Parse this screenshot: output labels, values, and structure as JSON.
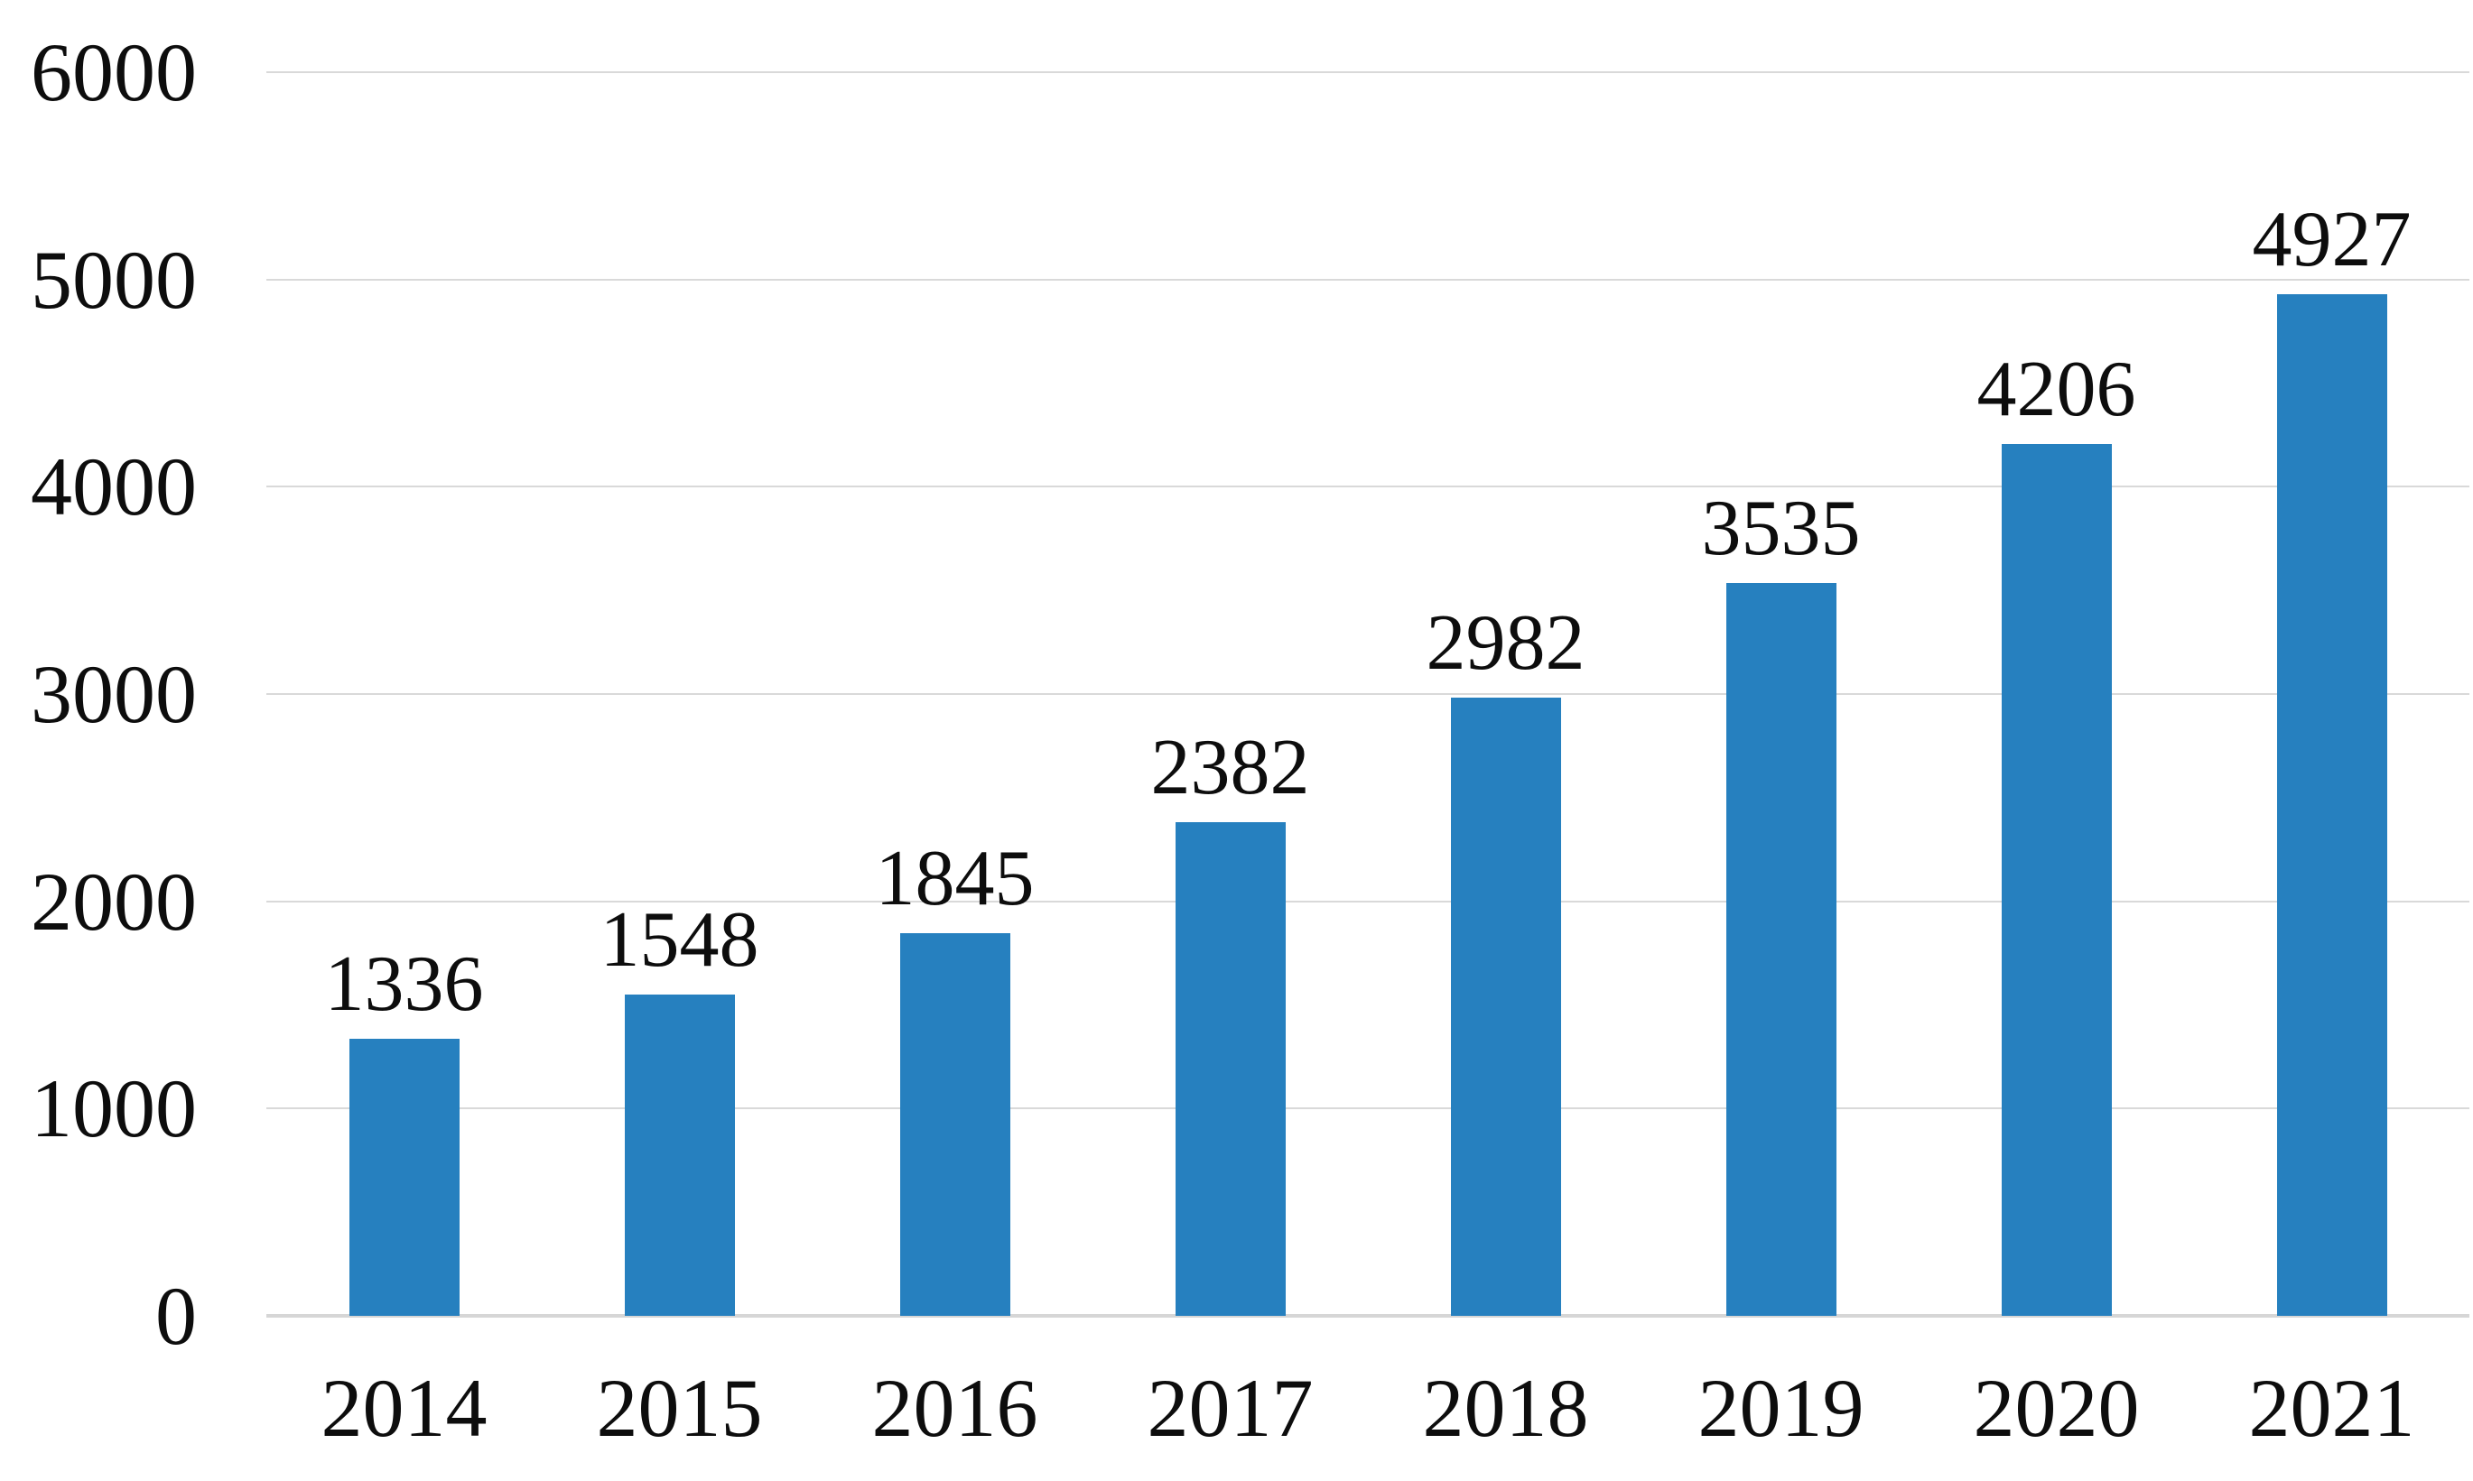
{
  "chart_data": {
    "type": "bar",
    "title": "",
    "xlabel": "",
    "ylabel": "",
    "categories": [
      "2014",
      "2015",
      "2016",
      "2017",
      "2018",
      "2019",
      "2020",
      "2021"
    ],
    "values": [
      1336,
      1548,
      1845,
      2382,
      2982,
      3535,
      4206,
      4927
    ],
    "data_labels": [
      "1336",
      "1548",
      "1845",
      "2382",
      "2982",
      "3535",
      "4206",
      "4927"
    ],
    "ylim": [
      0,
      6000
    ],
    "ytick_interval": 1000,
    "yticks": [
      "0",
      "1000",
      "2000",
      "3000",
      "4000",
      "5000",
      "6000"
    ],
    "grid": "horizontal",
    "legend": "none",
    "colors": {
      "bar": "#2680bf",
      "gridline": "#d9d9d9",
      "baseline": "#d6d6d6",
      "text": "#0d0d0d",
      "background": "#ffffff"
    }
  }
}
